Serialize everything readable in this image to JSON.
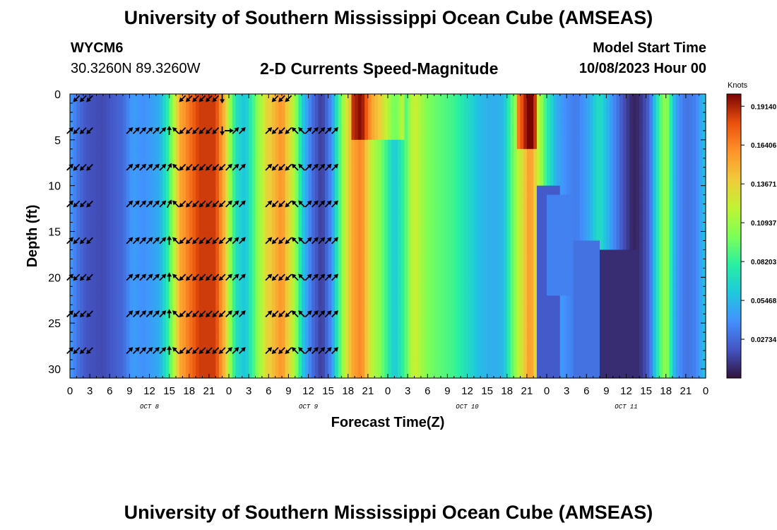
{
  "header": {
    "title": "University of Southern Mississippi Ocean Cube (AMSEAS)",
    "station": "WYCM6",
    "coords": "30.3260N  89.3260W",
    "subtitle": "2-D Currents Speed-Magnitude",
    "model_start_label": "Model Start Time",
    "model_start_value": "10/08/2023 Hour 00"
  },
  "footer": {
    "title": "University of Southern Mississippi Ocean Cube (AMSEAS)"
  },
  "chart_data": {
    "type": "heatmap",
    "title": "2-D Currents Speed-Magnitude",
    "xlabel": "Forecast Time(Z)",
    "ylabel": "Depth (ft)",
    "xlim": [
      0,
      96
    ],
    "ylim": [
      31,
      0
    ],
    "x_tick_labels": [
      "0",
      "3",
      "6",
      "9",
      "12",
      "15",
      "18",
      "21",
      "0",
      "3",
      "6",
      "9",
      "12",
      "15",
      "18",
      "21",
      "0",
      "3",
      "6",
      "9",
      "12",
      "15",
      "18",
      "21",
      "0",
      "3",
      "6",
      "9",
      "12",
      "15",
      "18",
      "21",
      "0"
    ],
    "date_labels": [
      {
        "hour": 12,
        "label": "OCT 8"
      },
      {
        "hour": 36,
        "label": "OCT 9"
      },
      {
        "hour": 60,
        "label": "OCT 10"
      },
      {
        "hour": 84,
        "label": "OCT 11"
      }
    ],
    "y_ticks": [
      0,
      5,
      10,
      15,
      20,
      25,
      30
    ],
    "colorbar": {
      "unit": "Knots",
      "min": 0.0,
      "max": 0.2,
      "labels": [
        "0.19140",
        "0.16406",
        "0.13671",
        "0.10937",
        "0.08203",
        "0.05468",
        "0.02734"
      ],
      "label_values": [
        0.1914,
        0.16406,
        0.13671,
        0.10937,
        0.08203,
        0.05468,
        0.02734
      ]
    },
    "speed_profile": {
      "hours": [
        0,
        1,
        2.5,
        5,
        8,
        9.5,
        11,
        13.5,
        15,
        16.5,
        19.5,
        22,
        23.5,
        25,
        26.5,
        29.5,
        32,
        34,
        35,
        36.5,
        38,
        39.5,
        41,
        42.5,
        44,
        45.5,
        47,
        49,
        50.5,
        52,
        54,
        56,
        58,
        60,
        62,
        64,
        65.5,
        67,
        69.5,
        72,
        73.5,
        75,
        76.5,
        78,
        80,
        82,
        83.5,
        85,
        86,
        87.5,
        89,
        90,
        91.5,
        93,
        94.5,
        96
      ],
      "knots": [
        0.045,
        0.032,
        0.02,
        0.017,
        0.027,
        0.045,
        0.04,
        0.05,
        0.085,
        0.15,
        0.185,
        0.185,
        0.14,
        0.072,
        0.058,
        0.13,
        0.16,
        0.11,
        0.065,
        0.03,
        0.012,
        0.04,
        0.1,
        0.15,
        0.165,
        0.12,
        0.1,
        0.06,
        0.085,
        0.125,
        0.1,
        0.092,
        0.085,
        0.07,
        0.055,
        0.05,
        0.055,
        0.1,
        0.16,
        0.08,
        0.05,
        0.038,
        0.033,
        0.045,
        0.072,
        0.04,
        0.02,
        0.005,
        0.008,
        0.025,
        0.085,
        0.11,
        0.045,
        0.03,
        0.035,
        0.06
      ]
    },
    "depth_overrides": [
      {
        "h0": 42.5,
        "h1": 50.5,
        "d0": 0,
        "d1": 5,
        "add": 0.035
      },
      {
        "h0": 67.5,
        "h1": 70.5,
        "d0": 0,
        "d1": 6,
        "add": 0.05
      },
      {
        "h0": 70.5,
        "h1": 74,
        "d0": 10,
        "d1": 31,
        "value": 0.022
      },
      {
        "h0": 72,
        "h1": 76,
        "d0": 11,
        "d1": 22,
        "value": 0.035
      },
      {
        "h0": 76,
        "h1": 80,
        "d0": 16,
        "d1": 31,
        "value": 0.03
      },
      {
        "h0": 80,
        "h1": 86,
        "d0": 17,
        "d1": 31,
        "value": 0.008
      }
    ],
    "arrow_rows_ft": [
      0.5,
      4,
      8,
      12,
      16,
      20,
      24,
      28
    ],
    "arrow_columns": [
      {
        "hour": 0,
        "rows": [
          -1,
          45,
          45,
          45,
          45,
          45,
          45,
          45
        ]
      },
      {
        "hour": 1,
        "rows": [
          225,
          225,
          225,
          225,
          225,
          225,
          225,
          225
        ]
      },
      {
        "hour": 2,
        "rows": [
          225,
          225,
          225,
          225,
          225,
          225,
          225,
          225
        ]
      },
      {
        "hour": 3,
        "rows": [
          225,
          225,
          225,
          225,
          225,
          225,
          225,
          225
        ]
      },
      {
        "hour": 9,
        "rows": [
          -1,
          45,
          45,
          45,
          45,
          45,
          45,
          45
        ]
      },
      {
        "hour": 10,
        "rows": [
          -1,
          45,
          45,
          45,
          45,
          45,
          45,
          45
        ]
      },
      {
        "hour": 11,
        "rows": [
          -1,
          45,
          45,
          45,
          45,
          45,
          45,
          45
        ]
      },
      {
        "hour": 12,
        "rows": [
          -1,
          45,
          45,
          45,
          45,
          45,
          45,
          45
        ]
      },
      {
        "hour": 13,
        "rows": [
          -1,
          45,
          45,
          45,
          45,
          45,
          45,
          45
        ]
      },
      {
        "hour": 14,
        "rows": [
          -1,
          45,
          45,
          45,
          45,
          45,
          45,
          45
        ]
      },
      {
        "hour": 15,
        "rows": [
          -1,
          90,
          60,
          60,
          90,
          90,
          90,
          90
        ]
      },
      {
        "hour": 16,
        "rows": [
          -1,
          135,
          135,
          135,
          135,
          135,
          135,
          135
        ]
      },
      {
        "hour": 17,
        "rows": [
          225,
          225,
          225,
          225,
          225,
          225,
          225,
          225
        ]
      },
      {
        "hour": 18,
        "rows": [
          225,
          225,
          225,
          225,
          225,
          225,
          225,
          225
        ]
      },
      {
        "hour": 19,
        "rows": [
          225,
          225,
          225,
          225,
          225,
          225,
          225,
          225
        ]
      },
      {
        "hour": 20,
        "rows": [
          225,
          225,
          225,
          225,
          225,
          225,
          225,
          225
        ]
      },
      {
        "hour": 21,
        "rows": [
          225,
          225,
          225,
          225,
          225,
          225,
          225,
          225
        ]
      },
      {
        "hour": 22,
        "rows": [
          225,
          225,
          225,
          225,
          225,
          225,
          225,
          225
        ]
      },
      {
        "hour": 23,
        "rows": [
          270,
          270,
          225,
          225,
          225,
          225,
          225,
          225
        ]
      },
      {
        "hour": 24,
        "rows": [
          -1,
          0,
          45,
          45,
          45,
          45,
          45,
          45
        ]
      },
      {
        "hour": 25,
        "rows": [
          -1,
          45,
          45,
          45,
          45,
          45,
          45,
          45
        ]
      },
      {
        "hour": 26,
        "rows": [
          -1,
          45,
          45,
          45,
          45,
          45,
          45,
          45
        ]
      },
      {
        "hour": 30,
        "rows": [
          -1,
          45,
          45,
          45,
          45,
          45,
          45,
          45
        ]
      },
      {
        "hour": 31,
        "rows": [
          225,
          225,
          225,
          225,
          225,
          225,
          225,
          225
        ]
      },
      {
        "hour": 32,
        "rows": [
          225,
          225,
          225,
          225,
          225,
          225,
          225,
          225
        ]
      },
      {
        "hour": 33,
        "rows": [
          225,
          225,
          225,
          225,
          225,
          225,
          225,
          225
        ]
      },
      {
        "hour": 34,
        "rows": [
          -1,
          135,
          135,
          135,
          135,
          135,
          135,
          135
        ]
      },
      {
        "hour": 35,
        "rows": [
          -1,
          135,
          135,
          135,
          135,
          135,
          135,
          135
        ]
      },
      {
        "hour": 36,
        "rows": [
          -1,
          45,
          45,
          45,
          45,
          45,
          45,
          45
        ]
      },
      {
        "hour": 37,
        "rows": [
          -1,
          45,
          45,
          45,
          45,
          45,
          45,
          45
        ]
      },
      {
        "hour": 38,
        "rows": [
          -1,
          45,
          45,
          45,
          45,
          45,
          45,
          45
        ]
      },
      {
        "hour": 39,
        "rows": [
          -1,
          45,
          45,
          45,
          45,
          45,
          45,
          45
        ]
      },
      {
        "hour": 40,
        "rows": [
          -1,
          45,
          45,
          45,
          45,
          45,
          45,
          45
        ]
      }
    ]
  }
}
